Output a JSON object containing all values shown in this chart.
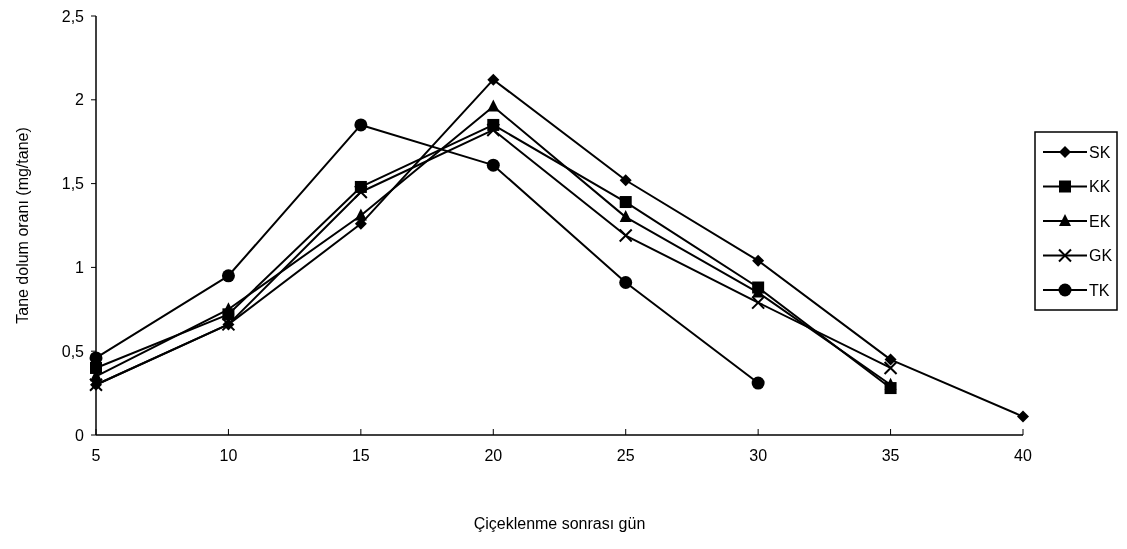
{
  "chart_data": {
    "type": "line",
    "xlabel": "Çiçeklenme sonrası gün",
    "ylabel": "Tane dolum oranı (mg/tane)",
    "xlim": [
      5,
      40
    ],
    "xticks": [
      5,
      10,
      15,
      20,
      25,
      30,
      35,
      40
    ],
    "ylim": [
      0,
      2.5
    ],
    "yticks": [
      0,
      {
        "value": 0.5,
        "label": "0,5"
      },
      1,
      {
        "value": 1.5,
        "label": "1,5"
      },
      2,
      {
        "value": 2.5,
        "label": "2,5"
      }
    ],
    "grid": false,
    "legend": "right",
    "line_style": "solid",
    "series": [
      {
        "name": "SK",
        "color": "#000000",
        "marker": "diamond",
        "x": [
          5,
          10,
          15,
          20,
          25,
          30,
          35,
          40
        ],
        "values": [
          0.3,
          0.66,
          1.26,
          2.12,
          1.52,
          1.04,
          0.45,
          0.11
        ]
      },
      {
        "name": "KK",
        "color": "#000000",
        "marker": "square",
        "x": [
          5,
          10,
          15,
          20,
          25,
          30,
          35
        ],
        "values": [
          0.4,
          0.72,
          1.48,
          1.85,
          1.39,
          0.88,
          0.28
        ]
      },
      {
        "name": "EK",
        "color": "#000000",
        "marker": "triangle",
        "x": [
          5,
          10,
          15,
          20,
          25,
          30,
          35
        ],
        "values": [
          0.35,
          0.75,
          1.31,
          1.96,
          1.3,
          0.85,
          0.3
        ]
      },
      {
        "name": "GK",
        "color": "#000000",
        "marker": "cross",
        "x": [
          5,
          10,
          15,
          20,
          25,
          30,
          35
        ],
        "values": [
          0.3,
          0.66,
          1.45,
          1.82,
          1.19,
          0.79,
          0.4
        ]
      },
      {
        "name": "TK",
        "color": "#000000",
        "marker": "circle",
        "x": [
          5,
          10,
          15,
          20,
          25,
          30
        ],
        "values": [
          0.46,
          0.95,
          1.85,
          1.61,
          0.91,
          0.31
        ]
      }
    ]
  }
}
